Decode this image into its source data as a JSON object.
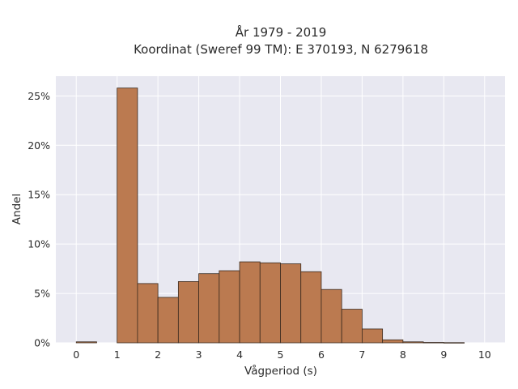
{
  "chart_data": {
    "type": "bar",
    "title_line1": "År 1979 - 2019",
    "title_line2": "Koordinat (Sweref 99 TM): E 370193, N 6279618",
    "xlabel": "Vågperiod (s)",
    "ylabel": "Andel",
    "bin_width": 0.5,
    "bins": [
      {
        "x0": 0.0,
        "value": 0.1
      },
      {
        "x0": 0.5,
        "value": 0.0
      },
      {
        "x0": 1.0,
        "value": 25.8
      },
      {
        "x0": 1.5,
        "value": 6.0
      },
      {
        "x0": 2.0,
        "value": 4.6
      },
      {
        "x0": 2.5,
        "value": 6.2
      },
      {
        "x0": 3.0,
        "value": 7.0
      },
      {
        "x0": 3.5,
        "value": 7.3
      },
      {
        "x0": 4.0,
        "value": 8.2
      },
      {
        "x0": 4.5,
        "value": 8.1
      },
      {
        "x0": 5.0,
        "value": 8.0
      },
      {
        "x0": 5.5,
        "value": 7.2
      },
      {
        "x0": 6.0,
        "value": 5.4
      },
      {
        "x0": 6.5,
        "value": 3.4
      },
      {
        "x0": 7.0,
        "value": 1.4
      },
      {
        "x0": 7.5,
        "value": 0.3
      },
      {
        "x0": 8.0,
        "value": 0.1
      },
      {
        "x0": 8.5,
        "value": 0.04
      },
      {
        "x0": 9.0,
        "value": 0.02
      }
    ],
    "xlim": [
      -0.5,
      10.5
    ],
    "ylim": [
      0,
      27
    ],
    "x_ticks": [
      0,
      1,
      2,
      3,
      4,
      5,
      6,
      7,
      8,
      9,
      10
    ],
    "x_tick_labels": [
      "0",
      "1",
      "2",
      "3",
      "4",
      "5",
      "6",
      "7",
      "8",
      "9",
      "10"
    ],
    "y_ticks": [
      0,
      5,
      10,
      15,
      20,
      25
    ],
    "y_tick_labels": [
      "0%",
      "5%",
      "10%",
      "15%",
      "20%",
      "25%"
    ],
    "grid": true,
    "colors": {
      "bar_fill": "#bb7a50",
      "bar_stroke": "#3a2a1e",
      "plot_bg": "#e8e8f1",
      "grid": "#ffffff",
      "text": "#2a2a2a"
    }
  }
}
